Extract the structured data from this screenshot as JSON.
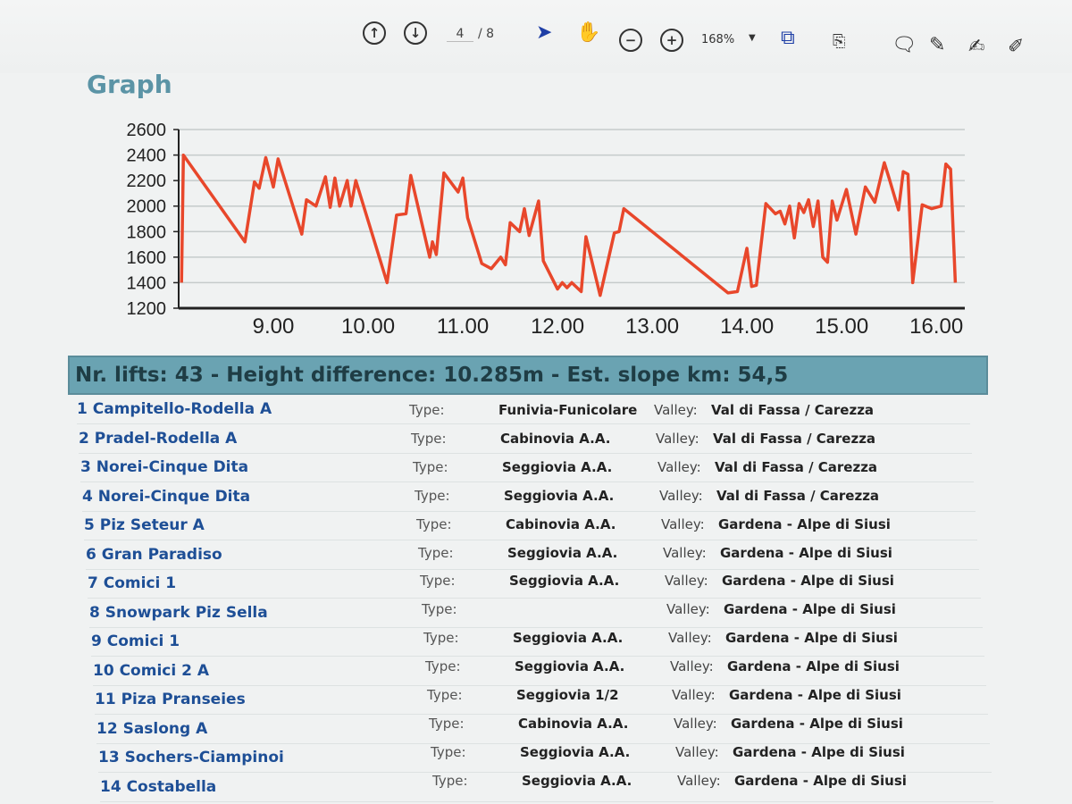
{
  "toolbar": {
    "page_current": "4",
    "page_total": "/ 8",
    "zoom": "168%"
  },
  "heading": "Graph",
  "chart_data": {
    "type": "line",
    "yticks": [
      "2600",
      "2400",
      "2200",
      "2000",
      "1800",
      "1600",
      "1400",
      "1200"
    ],
    "xticks": [
      "9.00",
      "10.00",
      "11.00",
      "12.00",
      "13.00",
      "14.00",
      "15.00",
      "16.00"
    ],
    "xlim": [
      8.0,
      16.3
    ],
    "ylim": [
      1200,
      2600
    ],
    "color": "#e8472b",
    "series": [
      {
        "x": [
          8.03,
          8.05,
          8.7,
          8.8,
          8.85,
          8.92,
          9.0,
          9.05,
          9.3,
          9.35,
          9.45,
          9.55,
          9.6,
          9.65,
          9.7,
          9.78,
          9.82,
          9.87,
          10.2,
          10.3,
          10.4,
          10.45,
          10.65,
          10.68,
          10.72,
          10.8,
          10.95,
          11.0,
          11.05,
          11.2,
          11.3,
          11.4,
          11.45,
          11.5,
          11.6,
          11.65,
          11.7,
          11.8,
          11.85,
          12.0,
          12.05,
          12.1,
          12.15,
          12.25,
          12.3,
          12.45,
          12.6,
          12.65,
          12.7,
          13.8,
          13.9,
          14.0,
          14.05,
          14.1,
          14.2,
          14.3,
          14.35,
          14.4,
          14.45,
          14.5,
          14.55,
          14.6,
          14.65,
          14.7,
          14.75,
          14.8,
          14.85,
          14.9,
          14.95,
          15.05,
          15.15,
          15.25,
          15.35,
          15.45,
          15.5,
          15.6,
          15.65,
          15.7,
          15.75,
          15.85,
          15.95,
          16.05,
          16.1,
          16.15,
          16.2
        ],
        "y": [
          1400,
          2400,
          1720,
          2190,
          2140,
          2380,
          2150,
          2370,
          1780,
          2050,
          2000,
          2230,
          1990,
          2220,
          2000,
          2200,
          2000,
          2200,
          1400,
          1930,
          1940,
          2240,
          1600,
          1720,
          1620,
          2260,
          2110,
          2220,
          1910,
          1550,
          1510,
          1600,
          1540,
          1870,
          1800,
          1980,
          1770,
          2040,
          1570,
          1350,
          1400,
          1360,
          1400,
          1330,
          1760,
          1300,
          1790,
          1800,
          1980,
          1320,
          1330,
          1670,
          1370,
          1380,
          2020,
          1940,
          1960,
          1860,
          2000,
          1750,
          2020,
          1950,
          2050,
          1840,
          2040,
          1600,
          1560,
          2040,
          1890,
          2130,
          1780,
          2150,
          2030,
          2340,
          2220,
          1970,
          2270,
          2250,
          1400,
          2010,
          1980,
          2000,
          2330,
          2290,
          1400
        ]
      }
    ]
  },
  "summary": "Nr. lifts: 43 - Height difference: 10.285m - Est. slope km: 54,5",
  "lifts": [
    {
      "name": "1 Campitello-Rodella A",
      "type_label": "Type:",
      "type": "Funivia-Funicolare",
      "valley_label": "Valley:",
      "valley": "Val di Fassa / Carezza"
    },
    {
      "name": "2 Pradel-Rodella A",
      "type_label": "Type:",
      "type": "Cabinovia A.A.",
      "valley_label": "Valley:",
      "valley": "Val di Fassa / Carezza"
    },
    {
      "name": "3 Norei-Cinque Dita",
      "type_label": "Type:",
      "type": "Seggiovia A.A.",
      "valley_label": "Valley:",
      "valley": "Val di Fassa / Carezza"
    },
    {
      "name": "4 Norei-Cinque Dita",
      "type_label": "Type:",
      "type": "Seggiovia A.A.",
      "valley_label": "Valley:",
      "valley": "Val di Fassa / Carezza"
    },
    {
      "name": "5 Piz Seteur A",
      "type_label": "Type:",
      "type": "Cabinovia A.A.",
      "valley_label": "Valley:",
      "valley": "Gardena - Alpe di Siusi"
    },
    {
      "name": "6 Gran Paradiso",
      "type_label": "Type:",
      "type": "Seggiovia A.A.",
      "valley_label": "Valley:",
      "valley": "Gardena - Alpe di Siusi"
    },
    {
      "name": "7 Comici 1",
      "type_label": "Type:",
      "type": "Seggiovia A.A.",
      "valley_label": "Valley:",
      "valley": "Gardena - Alpe di Siusi"
    },
    {
      "name": "8 Snowpark Piz Sella",
      "type_label": "Type:",
      "type": "",
      "valley_label": "Valley:",
      "valley": "Gardena - Alpe di Siusi"
    },
    {
      "name": "9 Comici 1",
      "type_label": "Type:",
      "type": "Seggiovia A.A.",
      "valley_label": "Valley:",
      "valley": "Gardena - Alpe di Siusi"
    },
    {
      "name": "10 Comici 2 A",
      "type_label": "Type:",
      "type": "Seggiovia A.A.",
      "valley_label": "Valley:",
      "valley": "Gardena - Alpe di Siusi"
    },
    {
      "name": "11 Piza Pranseies",
      "type_label": "Type:",
      "type": "Seggiovia 1/2",
      "valley_label": "Valley:",
      "valley": "Gardena - Alpe di Siusi"
    },
    {
      "name": "12 Saslong A",
      "type_label": "Type:",
      "type": "Cabinovia A.A.",
      "valley_label": "Valley:",
      "valley": "Gardena - Alpe di Siusi"
    },
    {
      "name": "13 Sochers-Ciampinoi",
      "type_label": "Type:",
      "type": "Seggiovia A.A.",
      "valley_label": "Valley:",
      "valley": "Gardena - Alpe di Siusi"
    },
    {
      "name": "14 Costabella",
      "type_label": "Type:",
      "type": "Seggiovia A.A.",
      "valley_label": "Valley:",
      "valley": "Gardena - Alpe di Siusi"
    }
  ]
}
